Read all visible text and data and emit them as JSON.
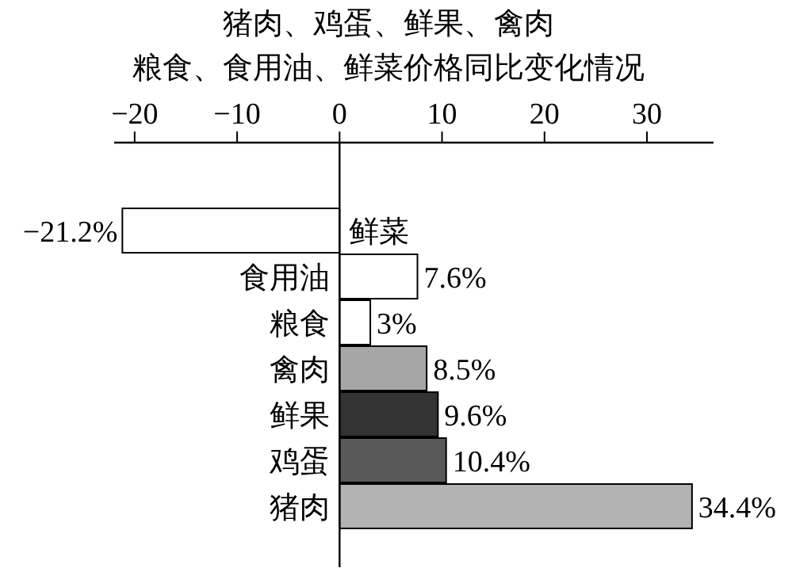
{
  "chart_data": {
    "type": "bar",
    "orientation": "horizontal",
    "title": "猪肉、鸡蛋、鲜果、禽肉",
    "subtitle": "粮食、食用油、鲜菜价格同比变化情况",
    "categories": [
      "鲜菜",
      "食用油",
      "粮食",
      "禽肉",
      "鲜果",
      "鸡蛋",
      "猪肉"
    ],
    "values": [
      -21.2,
      7.6,
      3,
      8.5,
      9.6,
      10.4,
      34.4
    ],
    "colors": [
      "#ffffff",
      "#ffffff",
      "#ffffff",
      "#a6a6a6",
      "#333333",
      "#595959",
      "#b3b3b3"
    ],
    "value_labels": [
      "−21.2%",
      "7.6%",
      "3%",
      "8.5%",
      "9.6%",
      "10.4%",
      "34.4%"
    ],
    "xlim": [
      -22,
      36.5
    ],
    "xticks": [
      -20,
      -10,
      0,
      10,
      20,
      30
    ],
    "grid": false
  }
}
